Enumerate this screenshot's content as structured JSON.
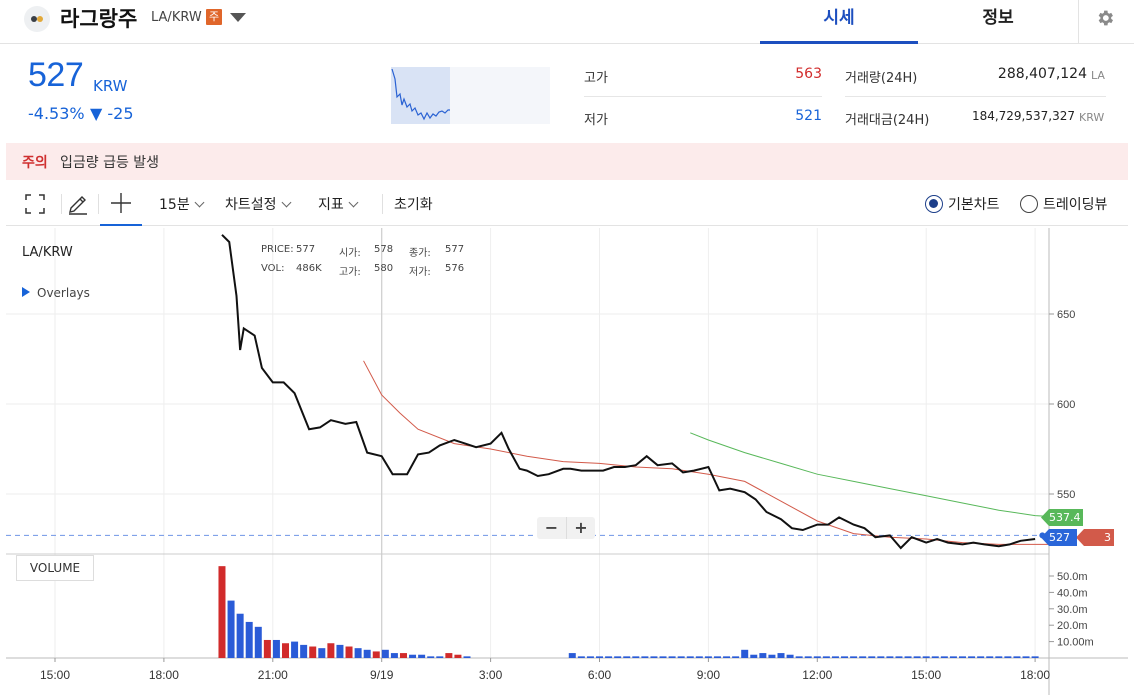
{
  "header": {
    "coin_name": "라그랑주",
    "pair": "LA/KRW",
    "warn_badge": "주",
    "tabs": [
      {
        "label": "시세",
        "active": true
      },
      {
        "label": "정보",
        "active": false
      }
    ],
    "icons": {
      "logo": "coin-logo-icon",
      "caret": "chevron-down-icon",
      "settings": "gear-icon"
    }
  },
  "price": {
    "current": "527",
    "unit": "KRW",
    "change_pct": "-4.53%",
    "change_abs": "▼ -25",
    "color": "#1763d8"
  },
  "stats": {
    "high_label": "고가",
    "high_value": "563",
    "low_label": "저가",
    "low_value": "521",
    "volume_label": "거래량(24H)",
    "volume_value": "288,407,124",
    "volume_unit": "LA",
    "turnover_label": "거래대금(24H)",
    "turnover_value": "184,729,537,327",
    "turnover_unit": "KRW",
    "up_color": "#d12b2b",
    "down_color": "#1763d8"
  },
  "notice": {
    "tag": "주의",
    "text": "입금량 급등 발생"
  },
  "toolbar": {
    "interval": "15분",
    "chart_settings": "차트설정",
    "indicators": "지표",
    "reset": "초기화",
    "basic_chart": "기본차트",
    "trading_view": "트레이딩뷰",
    "selected_mode": "기본차트",
    "icons": [
      "fullscreen-icon",
      "pencil-icon",
      "crosshair-icon"
    ]
  },
  "chart": {
    "pair_label": "LA/KRW",
    "overlays_label": "Overlays",
    "volume_label": "VOLUME",
    "zoom_out": "−",
    "zoom_in": "+",
    "ohlc": {
      "price_label": "PRICE:",
      "price": "577",
      "open_label": "시가:",
      "open": "578",
      "close_label": "종가:",
      "close": "577",
      "vol_label": "VOL:",
      "vol": "486K",
      "high_label": "고가:",
      "high": "580",
      "low_label": "저가:",
      "low": "576"
    },
    "price_ticks": [
      "650",
      "600",
      "550"
    ],
    "volume_ticks": [
      "50.0m",
      "40.0m",
      "30.0m",
      "20.0m",
      "10.00m"
    ],
    "time_ticks": [
      "15:00",
      "18:00",
      "21:00",
      "9/19",
      "3:00",
      "6:00",
      "9:00",
      "12:00",
      "15:00",
      "18:00"
    ],
    "tag_ma_green": "537.4",
    "tag_last": "527",
    "tag_ma_red_suffix": "3",
    "colors": {
      "line": "#111111",
      "ma_red": "#d25a4a",
      "ma_green": "#58b85a",
      "vol_up": "#d12b2b",
      "vol_down": "#2a5bd7"
    }
  },
  "chart_data": {
    "type": "line",
    "x_unit": "hours since 15:00 (9/18)",
    "ylim": [
      505,
      700
    ],
    "price_series": {
      "name": "LA/KRW",
      "x": [
        4.6,
        4.8,
        5.0,
        5.1,
        5.2,
        5.5,
        5.7,
        6.0,
        6.3,
        6.6,
        7.0,
        7.3,
        7.6,
        8.0,
        8.3,
        8.6,
        9.0,
        9.3,
        9.7,
        10.0,
        10.3,
        10.6,
        11.0,
        11.3,
        11.6,
        12.0,
        12.3,
        12.5,
        12.8,
        13.0,
        13.3,
        13.6,
        14.0,
        14.2,
        14.5,
        14.8,
        15.1,
        15.4,
        15.7,
        16.0,
        16.3,
        16.6,
        17.0,
        17.3,
        17.6,
        18.0,
        18.3,
        18.6,
        19.0,
        19.3,
        19.6,
        20.0,
        20.3,
        20.6,
        21.0,
        21.3,
        21.6,
        22.0,
        22.3,
        22.6,
        23.0,
        23.3,
        23.6,
        24.0,
        24.3,
        24.6,
        25.0,
        25.3,
        25.6,
        26.0,
        26.3,
        26.6,
        27.0
      ],
      "y": [
        694,
        690,
        660,
        630,
        642,
        638,
        620,
        612,
        612,
        606,
        586,
        587,
        591,
        589,
        590,
        573,
        571,
        561,
        561,
        572,
        573,
        577,
        580,
        578,
        576,
        578,
        584,
        575,
        564,
        563,
        560,
        561,
        564,
        564,
        563,
        563,
        563,
        565,
        565,
        566,
        571,
        566,
        567,
        562,
        563,
        565,
        552,
        553,
        551,
        547,
        540,
        536,
        531,
        530,
        533,
        533,
        537,
        533,
        531,
        526,
        527,
        520,
        526,
        523,
        525,
        523,
        522,
        523,
        522,
        521,
        522,
        524,
        525
      ]
    },
    "ma_red": {
      "x": [
        8.5,
        9.0,
        9.5,
        10.0,
        11.0,
        12.0,
        13.0,
        14.0,
        15.0,
        16.0,
        17.0,
        18.0,
        19.0,
        20.0,
        21.0,
        22.0,
        23.0,
        24.0,
        25.0,
        26.0,
        27.0,
        27.5
      ],
      "y": [
        624,
        605,
        595,
        586,
        578,
        575,
        571,
        568,
        567,
        565,
        564,
        561,
        557,
        546,
        535,
        528,
        526,
        525,
        523,
        522,
        522,
        522
      ]
    },
    "ma_green": {
      "x": [
        17.5,
        18.0,
        19.0,
        20.0,
        21.0,
        22.0,
        23.0,
        24.0,
        25.0,
        26.0,
        27.0,
        27.5
      ],
      "y": [
        584,
        580,
        573,
        567,
        561,
        557,
        553,
        549,
        545,
        541,
        538,
        537.4
      ]
    },
    "volume": {
      "ylim": [
        0,
        56
      ],
      "x": [
        4.6,
        4.85,
        5.1,
        5.35,
        5.6,
        5.85,
        6.1,
        6.35,
        6.6,
        6.85,
        7.1,
        7.35,
        7.6,
        7.85,
        8.1,
        8.35,
        8.6,
        8.85,
        9.1,
        9.35,
        9.6,
        9.85,
        10.1,
        10.35,
        10.6,
        10.85,
        11.1,
        11.35,
        14.25,
        14.5,
        14.75,
        15.0,
        15.25,
        15.5,
        15.75,
        16.0,
        16.25,
        16.5,
        16.75,
        17.0,
        17.25,
        17.5,
        17.75,
        18.0,
        18.25,
        18.5,
        18.75,
        19.0,
        19.25,
        19.5,
        19.75,
        20.0,
        20.25,
        20.5,
        20.75,
        21.0,
        21.25,
        21.5,
        21.75,
        22.0,
        22.25,
        22.5,
        22.75,
        23.0,
        23.25,
        23.5,
        23.75,
        24.0,
        24.25,
        24.5,
        24.75,
        25.0,
        25.25,
        25.5,
        25.75,
        26.0,
        26.25,
        26.5,
        26.75,
        27.0
      ],
      "values": [
        56,
        35,
        27,
        22,
        19,
        11,
        11,
        9,
        10,
        8,
        7,
        6,
        9,
        8,
        7,
        6,
        5,
        4,
        5,
        3,
        3,
        2,
        2,
        1,
        1,
        3,
        2,
        1,
        3,
        1,
        1,
        1,
        1,
        1,
        1,
        1,
        1,
        1,
        1,
        1,
        1,
        1,
        1,
        1,
        1,
        1,
        1,
        5,
        2,
        3,
        2,
        3,
        2,
        1,
        1,
        1,
        1,
        1,
        1,
        1,
        1,
        1,
        1,
        1,
        1,
        1,
        1,
        1,
        1,
        1,
        1,
        1,
        1,
        1,
        1,
        1,
        1,
        1,
        1,
        1
      ],
      "up": [
        true,
        false,
        false,
        false,
        false,
        true,
        false,
        true,
        false,
        false,
        true,
        false,
        true,
        false,
        true,
        false,
        false,
        true,
        false,
        false,
        true,
        false,
        false,
        false,
        false,
        true,
        true,
        false,
        false,
        false,
        false,
        false,
        false,
        false,
        false,
        false,
        false,
        false,
        false,
        false,
        false,
        false,
        false,
        false,
        false,
        false,
        false,
        false,
        false,
        false,
        false,
        false,
        false,
        false,
        false,
        false,
        false,
        false,
        false,
        false,
        false,
        false,
        false,
        false,
        false,
        false,
        false,
        false,
        false,
        false,
        false,
        false,
        false,
        false,
        false,
        false,
        false,
        false,
        false,
        false
      ]
    },
    "last_price": 527
  }
}
